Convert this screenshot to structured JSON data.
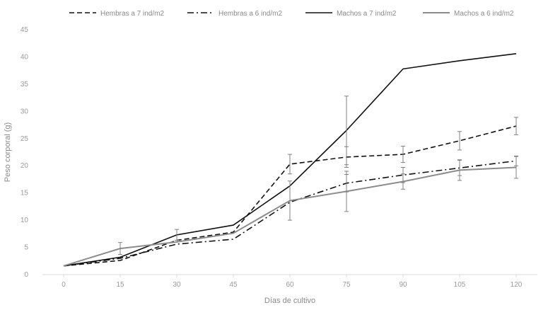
{
  "chart_data": {
    "type": "line",
    "title": "",
    "xlabel": "Días de cultivo",
    "ylabel": "Peso corporal (g)",
    "x": [
      0,
      15,
      30,
      45,
      60,
      75,
      90,
      105,
      120
    ],
    "xlim": [
      0,
      120
    ],
    "ylim": [
      0,
      45
    ],
    "yticks": [
      0,
      5,
      10,
      15,
      20,
      25,
      30,
      35,
      40,
      45
    ],
    "grid": false,
    "legend_position": "top",
    "series": [
      {
        "name": "Hembras a 7 ind/m2",
        "style": "dashed",
        "color": "#111111",
        "values": [
          1.6,
          2.6,
          6.3,
          7.8,
          20.3,
          21.6,
          22.1,
          24.6,
          27.3
        ],
        "error": [
          null,
          null,
          null,
          null,
          1.8,
          1.9,
          1.5,
          1.7,
          1.6
        ]
      },
      {
        "name": "Hembras a 6 ind/m2",
        "style": "dash-dot",
        "color": "#111111",
        "values": [
          1.6,
          3.0,
          5.6,
          6.5,
          13.3,
          16.8,
          18.3,
          19.6,
          20.9
        ],
        "error": [
          null,
          null,
          null,
          null,
          null,
          1.6,
          1.4,
          1.4,
          0.9
        ]
      },
      {
        "name": "Machos a 7 ind/m2",
        "style": "solid",
        "color": "#111111",
        "values": [
          1.6,
          3.2,
          7.3,
          9.1,
          16.3,
          26.5,
          37.8,
          39.3,
          40.6
        ],
        "error": [
          null,
          null,
          1.0,
          null,
          null,
          6.3,
          null,
          null,
          null
        ]
      },
      {
        "name": "Machos a 6 ind/m2",
        "style": "solid",
        "color": "#8c8c8c",
        "values": [
          1.6,
          4.8,
          6.0,
          7.6,
          13.6,
          15.3,
          17.1,
          19.2,
          19.7
        ],
        "error": [
          null,
          1.1,
          null,
          null,
          3.6,
          3.7,
          1.4,
          1.9,
          2.0
        ]
      }
    ]
  }
}
